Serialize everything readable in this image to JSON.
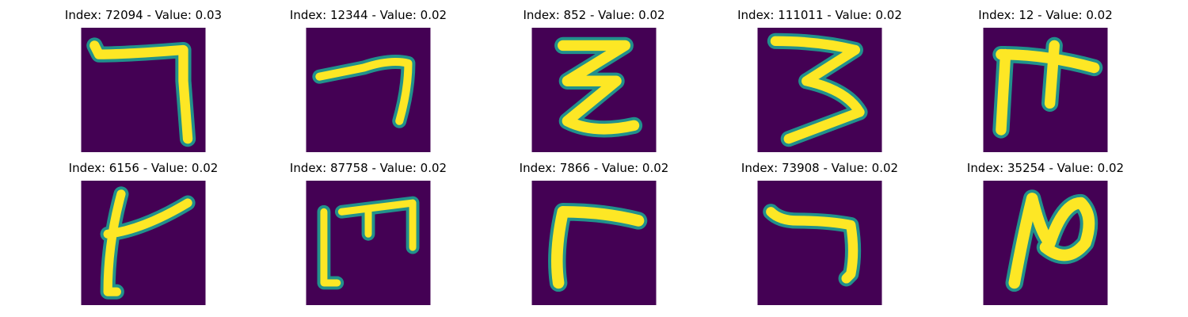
{
  "colors": {
    "background": "#440154",
    "stroke_core": "#fde725",
    "stroke_edge": "#21918c",
    "stroke_mid": "#5ec962"
  },
  "panels": [
    {
      "title": "Index: 72094 - Value: 0.03",
      "glyph": "seven-hook-icon"
    },
    {
      "title": "Index: 12344 - Value: 0.02",
      "glyph": "seven-curve-icon"
    },
    {
      "title": "Index: 852 - Value: 0.02",
      "glyph": "zigzag-icon"
    },
    {
      "title": "Index: 111011 - Value: 0.02",
      "glyph": "three-icon"
    },
    {
      "title": "Index: 12 - Value: 0.02",
      "glyph": "fork-icon"
    },
    {
      "title": "Index: 6156 - Value: 0.02",
      "glyph": "slanted-cross-icon"
    },
    {
      "title": "Index: 87758 - Value: 0.02",
      "glyph": "comb-icon"
    },
    {
      "title": "Index: 7866 - Value: 0.02",
      "glyph": "gamma-icon"
    },
    {
      "title": "Index: 73908 - Value: 0.02",
      "glyph": "seven-narrow-icon"
    },
    {
      "title": "Index: 35254 - Value: 0.02",
      "glyph": "loop-icon"
    }
  ]
}
